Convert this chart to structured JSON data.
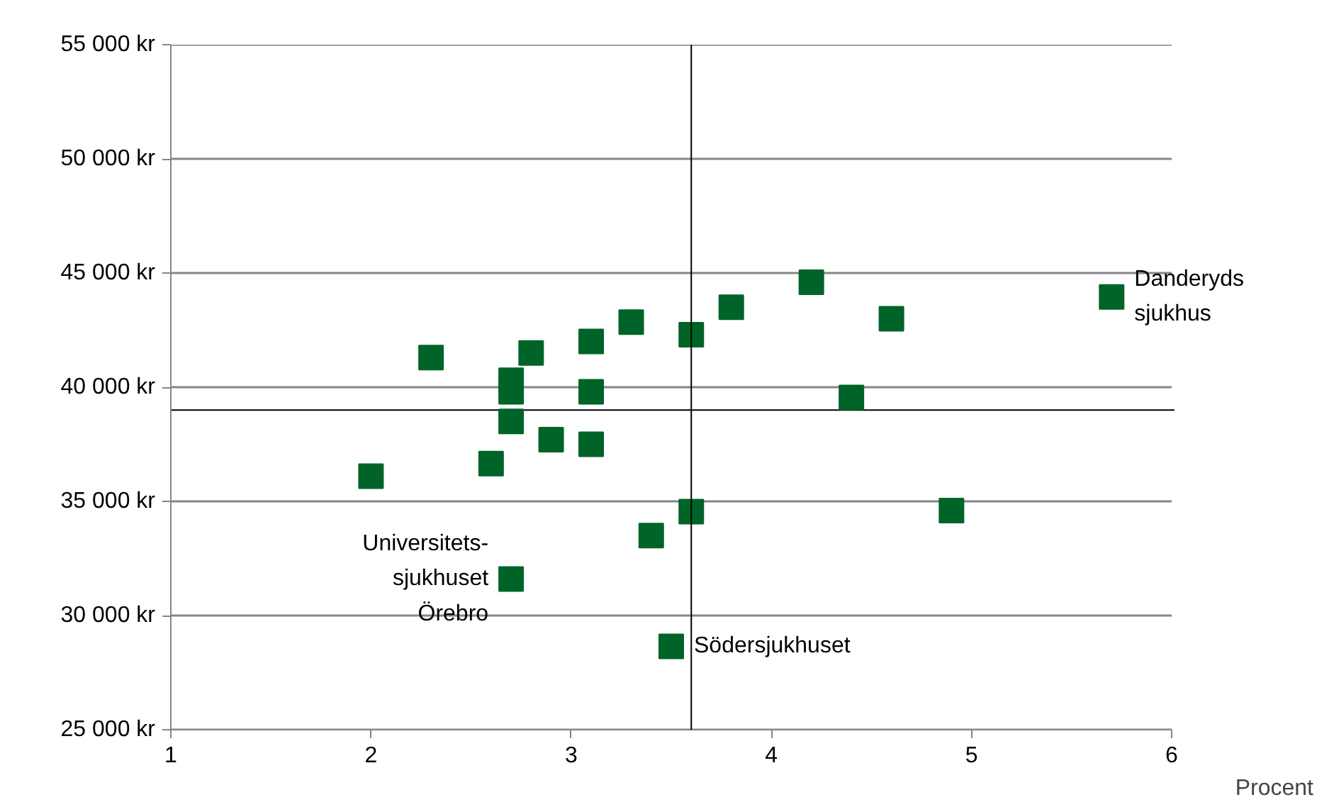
{
  "chart_data": {
    "type": "scatter",
    "xlabel": "Procent",
    "marker": "square",
    "grid": "y",
    "xlim": [
      1,
      6
    ],
    "xticks": [
      1,
      2,
      3,
      4,
      5,
      6
    ],
    "ylim": [
      25000,
      55000
    ],
    "yticks": [
      {
        "value": 25000,
        "label": "25 000 kr"
      },
      {
        "value": 30000,
        "label": "30 000 kr"
      },
      {
        "value": 35000,
        "label": "35 000 kr"
      },
      {
        "value": 40000,
        "label": "40 000 kr"
      },
      {
        "value": 45000,
        "label": "45 000 kr"
      },
      {
        "value": 50000,
        "label": "50 000 kr"
      },
      {
        "value": 55000,
        "label": "55 000 kr"
      }
    ],
    "series": [
      {
        "color": "#006428",
        "x": [
          2.0,
          2.3,
          2.6,
          2.7,
          2.7,
          2.7,
          2.7,
          2.8,
          2.9,
          3.1,
          3.1,
          3.1,
          3.3,
          3.4,
          3.5,
          3.6,
          3.6,
          3.8,
          4.2,
          4.4,
          4.6,
          4.9,
          5.7
        ],
        "values": [
          36100,
          41300,
          36650,
          40300,
          39800,
          38500,
          31600,
          41500,
          37700,
          42000,
          39800,
          37500,
          42850,
          33500,
          28650,
          42300,
          34550,
          43500,
          44600,
          39550,
          43000,
          34600,
          43950
        ]
      }
    ],
    "ref_lines": [
      {
        "axis": "x",
        "value": 3.6,
        "color": "#000000"
      },
      {
        "axis": "y",
        "value": 39000,
        "color": "#000000"
      }
    ],
    "annotations": [
      {
        "text": "Danderyds\nsjukhus",
        "x": 5.7,
        "y": 43950
      },
      {
        "text": "Universitets-\nsjukhuset\nÖrebro",
        "x": 2.7,
        "y": 31600
      },
      {
        "text": "Södersjukhuset",
        "x": 3.5,
        "y": 28650
      }
    ]
  }
}
